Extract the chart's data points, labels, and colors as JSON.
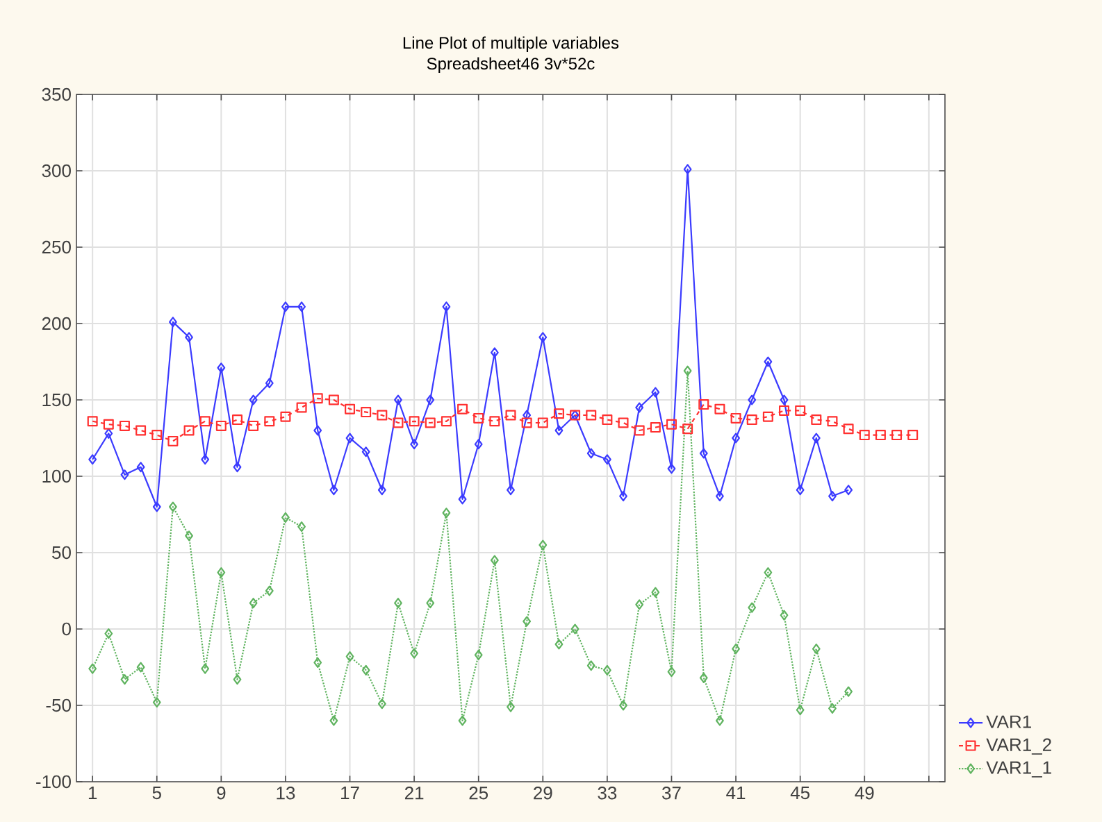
{
  "chart_data": {
    "type": "line",
    "title": "Line Plot of multiple variables",
    "subtitle": "Spreadsheet46 3v*52c",
    "xlim": [
      0,
      54
    ],
    "ylim": [
      -100,
      350
    ],
    "xticks": [
      1,
      5,
      9,
      13,
      17,
      21,
      25,
      29,
      33,
      37,
      41,
      45,
      49,
      {
        "value": 53,
        "label": null
      }
    ],
    "yticks": [
      -100,
      -50,
      0,
      50,
      100,
      150,
      200,
      250,
      300,
      350
    ],
    "grid": true,
    "legend": "bottom right",
    "series": [
      {
        "name": "VAR1",
        "color": "#3b3bff",
        "marker": "diamond",
        "line_style": "solid",
        "x": [
          1,
          2,
          3,
          4,
          5,
          6,
          7,
          8,
          9,
          10,
          11,
          12,
          13,
          14,
          15,
          16,
          17,
          18,
          19,
          20,
          21,
          22,
          23,
          24,
          25,
          26,
          27,
          28,
          29,
          30,
          31,
          32,
          33,
          34,
          35,
          36,
          37,
          38,
          39,
          40,
          41,
          42,
          43,
          44,
          45,
          46,
          47,
          48
        ],
        "values": [
          111,
          128,
          101,
          106,
          80,
          201,
          191,
          111,
          171,
          106,
          150,
          161,
          211,
          211,
          130,
          91,
          125,
          116,
          91,
          150,
          121,
          150,
          211,
          85,
          121,
          181,
          91,
          140,
          191,
          130,
          140,
          115,
          111,
          87,
          145,
          155,
          105,
          301,
          115,
          87,
          125,
          150,
          175,
          150,
          91,
          125,
          87,
          91
        ]
      },
      {
        "name": "VAR1_2",
        "color": "#ff3030",
        "marker": "square",
        "line_style": "dashed",
        "x": [
          1,
          2,
          3,
          4,
          5,
          6,
          7,
          8,
          9,
          10,
          11,
          12,
          13,
          14,
          15,
          16,
          17,
          18,
          19,
          20,
          21,
          22,
          23,
          24,
          25,
          26,
          27,
          28,
          29,
          30,
          31,
          32,
          33,
          34,
          35,
          36,
          37,
          38,
          39,
          40,
          41,
          42,
          43,
          44,
          45,
          46,
          47,
          48,
          49,
          50,
          51,
          52
        ],
        "values": [
          136,
          134,
          133,
          130,
          127,
          123,
          130,
          136,
          133,
          137,
          133,
          136,
          139,
          145,
          151,
          150,
          144,
          142,
          140,
          135,
          136,
          135,
          136,
          144,
          138,
          136,
          140,
          135,
          135,
          141,
          140,
          140,
          137,
          135,
          130,
          132,
          134,
          131,
          147,
          144,
          138,
          137,
          139,
          143,
          143,
          137,
          136,
          131,
          127,
          127,
          127,
          127
        ]
      },
      {
        "name": "VAR1_1",
        "color": "#5fb35f",
        "marker": "diamond",
        "line_style": "dotted",
        "x": [
          1,
          2,
          3,
          4,
          5,
          6,
          7,
          8,
          9,
          10,
          11,
          12,
          13,
          14,
          15,
          16,
          17,
          18,
          19,
          20,
          21,
          22,
          23,
          24,
          25,
          26,
          27,
          28,
          29,
          30,
          31,
          32,
          33,
          34,
          35,
          36,
          37,
          38,
          39,
          40,
          41,
          42,
          43,
          44,
          45,
          46,
          47,
          48
        ],
        "values": [
          -26,
          -3,
          -33,
          -25,
          -48,
          80,
          61,
          -26,
          37,
          -33,
          17,
          25,
          73,
          67,
          -22,
          -60,
          -18,
          -27,
          -49,
          17,
          -16,
          17,
          76,
          -60,
          -17,
          45,
          -51,
          5,
          55,
          -10,
          0,
          -24,
          -27,
          -50,
          16,
          24,
          -28,
          169,
          -32,
          -60,
          -13,
          14,
          37,
          9,
          -53,
          -13,
          -52,
          -41
        ]
      }
    ]
  }
}
